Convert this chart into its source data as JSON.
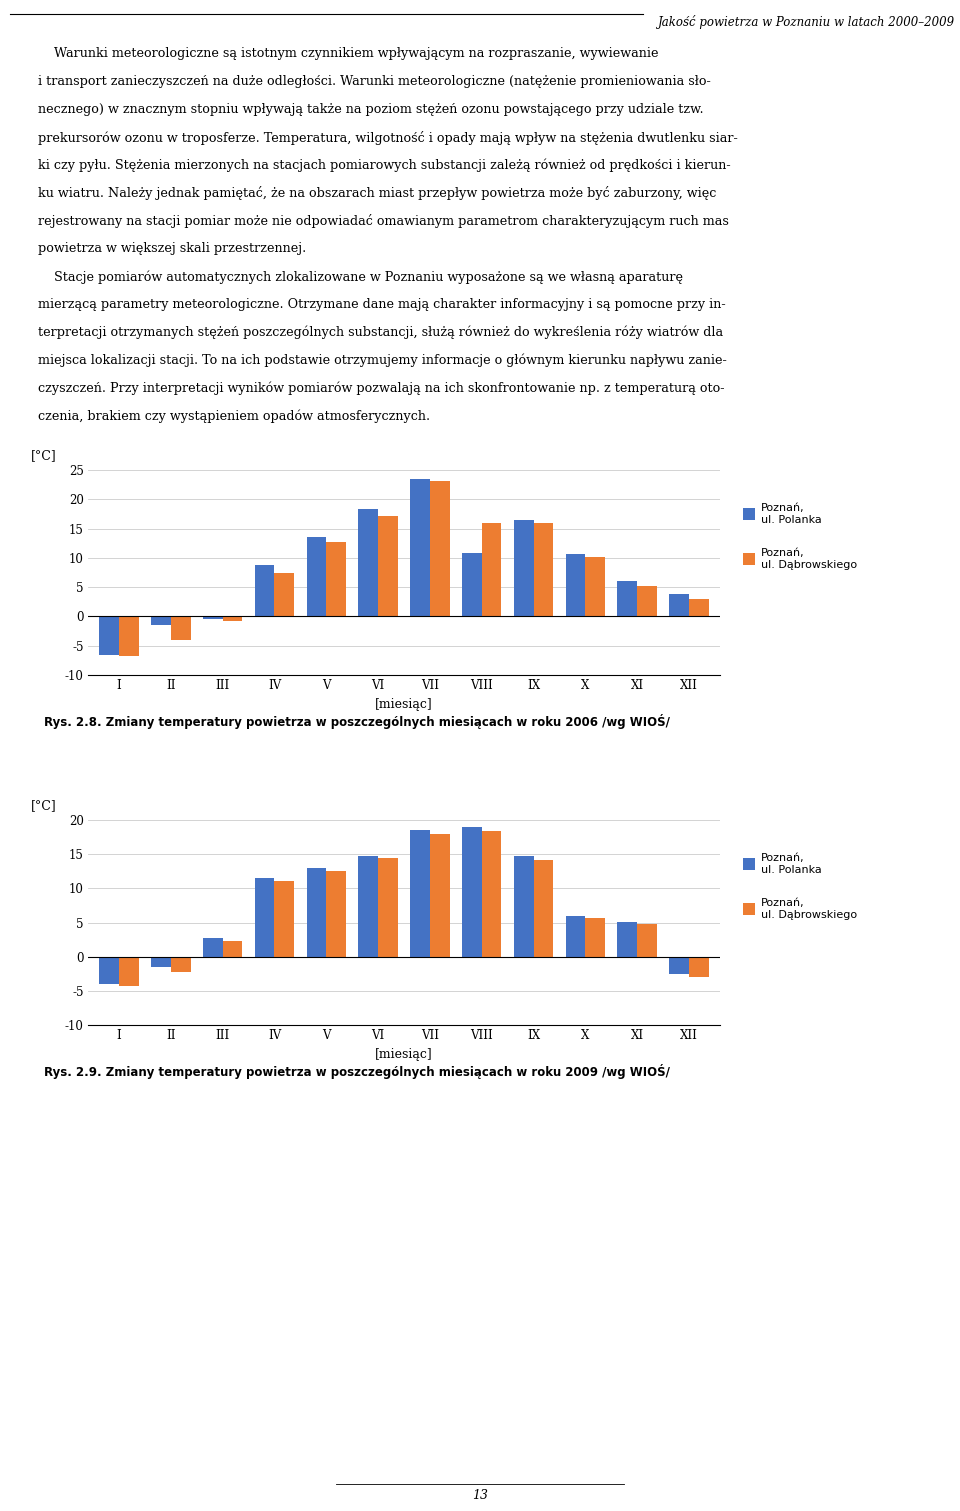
{
  "header_line": "Jakość powietrza w Poznaniu w latach 2000–2009",
  "chart1": {
    "title": "Rys. 2.8. Zmiany temperatury powietrza w poszczególnych miesiącach w roku 2006 /wg WIOŚ/",
    "ylabel": "[°C]",
    "xlabel": "[miesiąc]",
    "ylim": [
      -10,
      25
    ],
    "yticks": [
      -10,
      -5,
      0,
      5,
      10,
      15,
      20,
      25
    ],
    "months": [
      "I",
      "II",
      "III",
      "IV",
      "V",
      "VI",
      "VII",
      "VIII",
      "IX",
      "X",
      "XI",
      "XII"
    ],
    "polanka": [
      -6.5,
      -1.5,
      -0.5,
      8.8,
      13.6,
      18.3,
      23.5,
      10.8,
      16.5,
      10.7,
      6.1,
      3.8
    ],
    "dabrowskiego": [
      -6.8,
      -4.0,
      -0.8,
      7.5,
      12.7,
      17.1,
      23.1,
      16.0,
      16.0,
      10.1,
      5.2,
      2.9
    ],
    "color_polanka": "#4472C4",
    "color_dabrowskiego": "#ED7D31",
    "legend_polanka": "Poznań,\nul. Polanka",
    "legend_dabrowskiego": "Poznań,\nul. Dąbrowskiego"
  },
  "chart2": {
    "title": "Rys. 2.9. Zmiany temperatury powietrza w poszczególnych miesiącach w roku 2009 /wg WIOŚ/",
    "ylabel": "[°C]",
    "xlabel": "[miesiąc]",
    "ylim": [
      -10,
      20
    ],
    "yticks": [
      -10,
      -5,
      0,
      5,
      10,
      15,
      20
    ],
    "months": [
      "I",
      "II",
      "III",
      "IV",
      "V",
      "VI",
      "VII",
      "VIII",
      "IX",
      "X",
      "XI",
      "XII"
    ],
    "polanka": [
      -4.0,
      -1.5,
      2.7,
      11.5,
      13.0,
      14.8,
      18.6,
      19.0,
      14.8,
      6.0,
      5.1,
      -2.5
    ],
    "dabrowskiego": [
      -4.3,
      -2.2,
      2.3,
      11.1,
      12.6,
      14.4,
      18.0,
      18.4,
      14.1,
      5.6,
      4.8,
      -3.0
    ],
    "color_polanka": "#4472C4",
    "color_dabrowskiego": "#ED7D31",
    "legend_polanka": "Poznań,\nul. Polanka",
    "legend_dabrowskiego": "Poznań,\nul. Dąbrowskiego"
  },
  "chart_bg": "#F5F5DC",
  "plot_bg": "#FFFFFF",
  "page_bg": "#FFFFFF",
  "grid_color": "#CCCCCC",
  "page_number": "13",
  "body_lines": [
    "    Warunki meteorologiczne są istotnym czynnikiem wpływającym na rozpraszanie, wywiewanie",
    "i transport zanieczyszczeń na duże odległości. Warunki meteorologiczne (natężenie promieniowania sło-",
    "necznego) w znacznym stopniu wpływają także na poziom stężeń ozonu powstającego przy udziale tzw.",
    "prekursorów ozonu w troposferze. Temperatura, wilgotność i opady mają wpływ na stężenia dwutlenku siar-",
    "ki czy pyłu. Stężenia mierzonych na stacjach pomiarowych substancji zależą również od prędkości i kierun-",
    "ku wiatru. Należy jednak pamiętać, że na obszarach miast przepływ powietrza może być zaburzony, więc",
    "rejestrowany na stacji pomiar może nie odpowiadać omawianym parametrom charakteryzującym ruch mas",
    "powietrza w większej skali przestrzennej.",
    "    Stacje pomiarów automatycznych zlokalizowane w Poznaniu wyposażone są we własną aparaturę",
    "mierzącą parametry meteorologiczne. Otrzymane dane mają charakter informacyjny i są pomocne przy in-",
    "terpretacji otrzymanych stężeń poszczególnych substancji, służą również do wykreślenia róży wiatrów dla",
    "miejsca lokalizacji stacji. To na ich podstawie otrzymujemy informacje o głównym kierunku napływu zanie-",
    "czyszczeń. Przy interpretacji wyników pomiarów pozwalają na ich skonfrontowanie np. z temperaturą oto-",
    "czenia, brakiem czy wystąpieniem opadów atmosferycznych."
  ]
}
